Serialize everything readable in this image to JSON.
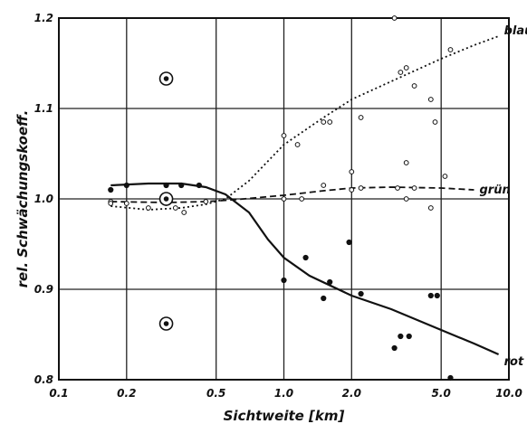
{
  "chart_data": {
    "type": "scatter",
    "title": "",
    "xlabel": "Sichtweite [km]",
    "ylabel": "rel. Schwächungskoeff.",
    "xscale": "log",
    "xlim": [
      0.1,
      10.0
    ],
    "ylim": [
      0.8,
      1.2
    ],
    "x_ticks": [
      0.1,
      0.2,
      0.5,
      1.0,
      2.0,
      5.0,
      10.0
    ],
    "x_tick_labels": [
      "0.1",
      "0.2",
      "0.5",
      "1.0",
      "2.0",
      "5.0",
      "10.0"
    ],
    "y_ticks": [
      0.8,
      0.9,
      1.0,
      1.1,
      1.2
    ],
    "y_tick_labels": [
      "0.8",
      "0.9",
      "1.0",
      "1.1",
      "1.2"
    ],
    "grid": true,
    "series": [
      {
        "name": "blau",
        "line_style": "dotted",
        "curve": [
          [
            0.17,
            0.992
          ],
          [
            0.25,
            0.988
          ],
          [
            0.35,
            0.99
          ],
          [
            0.45,
            0.994
          ],
          [
            0.55,
            1.0
          ],
          [
            0.7,
            1.02
          ],
          [
            1.0,
            1.06
          ],
          [
            1.5,
            1.09
          ],
          [
            2.0,
            1.11
          ],
          [
            3.0,
            1.13
          ],
          [
            5.0,
            1.155
          ],
          [
            7.0,
            1.17
          ],
          [
            9.0,
            1.18
          ]
        ],
        "points": [
          [
            0.17,
            0.997
          ],
          [
            0.25,
            0.99
          ],
          [
            0.33,
            0.99
          ],
          [
            0.36,
            0.985
          ],
          [
            1.0,
            1.07
          ],
          [
            1.15,
            1.06
          ],
          [
            1.5,
            1.085
          ],
          [
            1.6,
            1.085
          ],
          [
            2.0,
            1.03
          ],
          [
            2.2,
            1.09
          ],
          [
            3.1,
            1.2
          ],
          [
            3.3,
            1.14
          ],
          [
            3.5,
            1.145
          ],
          [
            3.8,
            1.125
          ],
          [
            4.5,
            1.11
          ],
          [
            4.7,
            1.085
          ],
          [
            5.5,
            1.165
          ]
        ]
      },
      {
        "name": "grün",
        "line_style": "dashed",
        "curve": [
          [
            0.17,
            0.997
          ],
          [
            0.3,
            0.996
          ],
          [
            0.45,
            0.997
          ],
          [
            0.6,
            0.999
          ],
          [
            1.0,
            1.004
          ],
          [
            1.5,
            1.009
          ],
          [
            2.0,
            1.012
          ],
          [
            3.0,
            1.013
          ],
          [
            5.0,
            1.012
          ],
          [
            7.0,
            1.01
          ]
        ],
        "points": [
          [
            0.17,
            0.995
          ],
          [
            0.2,
            0.995
          ],
          [
            0.3,
            0.995
          ],
          [
            0.45,
            0.997
          ],
          [
            1.0,
            1.0
          ],
          [
            1.2,
            1.0
          ],
          [
            1.5,
            1.015
          ],
          [
            2.0,
            1.01
          ],
          [
            2.2,
            1.012
          ],
          [
            3.2,
            1.012
          ],
          [
            3.5,
            1.0
          ],
          [
            3.5,
            1.04
          ],
          [
            3.8,
            1.012
          ],
          [
            4.5,
            0.99
          ],
          [
            5.2,
            1.025
          ]
        ]
      },
      {
        "name": "rot",
        "line_style": "solid",
        "curve": [
          [
            0.17,
            1.015
          ],
          [
            0.25,
            1.017
          ],
          [
            0.35,
            1.017
          ],
          [
            0.45,
            1.013
          ],
          [
            0.55,
            1.005
          ],
          [
            0.7,
            0.985
          ],
          [
            0.85,
            0.955
          ],
          [
            1.0,
            0.935
          ],
          [
            1.3,
            0.915
          ],
          [
            2.0,
            0.893
          ],
          [
            3.0,
            0.878
          ],
          [
            5.0,
            0.855
          ],
          [
            7.0,
            0.84
          ],
          [
            9.0,
            0.828
          ]
        ],
        "points": [
          [
            0.17,
            1.01
          ],
          [
            0.2,
            1.015
          ],
          [
            0.3,
            1.015
          ],
          [
            0.35,
            1.015
          ],
          [
            0.42,
            1.015
          ],
          [
            1.0,
            0.91
          ],
          [
            1.25,
            0.935
          ],
          [
            1.5,
            0.89
          ],
          [
            1.6,
            0.908
          ],
          [
            1.95,
            0.952
          ],
          [
            2.2,
            0.895
          ],
          [
            3.1,
            0.835
          ],
          [
            3.3,
            0.848
          ],
          [
            3.6,
            0.848
          ],
          [
            4.5,
            0.893
          ],
          [
            4.8,
            0.893
          ],
          [
            5.5,
            0.802
          ]
        ]
      }
    ],
    "circled_points": [
      [
        0.3,
        1.133
      ],
      [
        0.3,
        1.0
      ],
      [
        0.3,
        0.862
      ]
    ]
  }
}
